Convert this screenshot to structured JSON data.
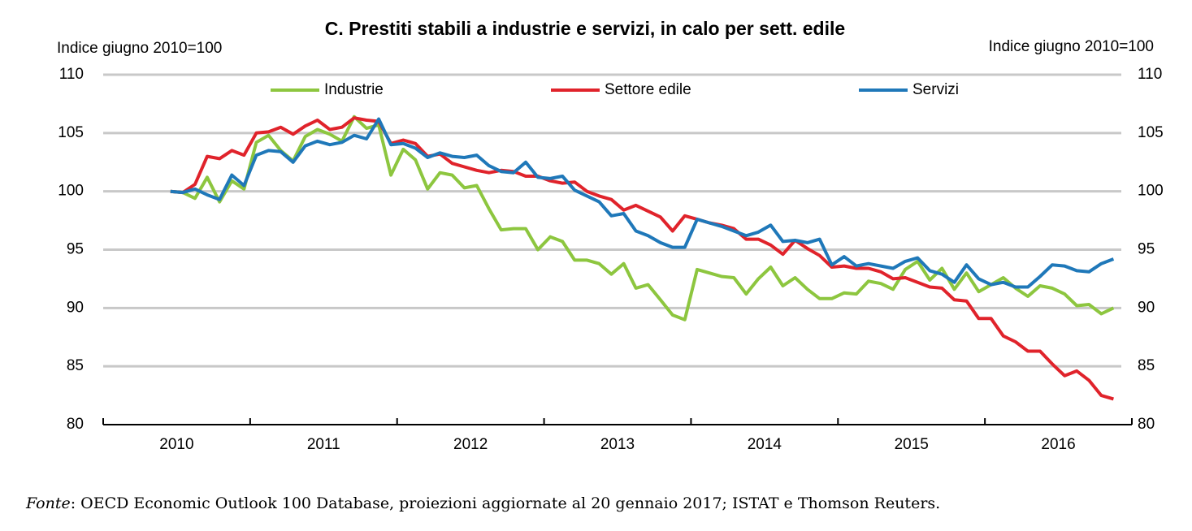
{
  "chart_data": {
    "type": "line",
    "title": "C. Prestiti stabili a industrie e servizi, in calo per sett. edile",
    "ylabel": "Indice giugno 2010=100",
    "y2label": "Indice giugno 2010=100",
    "year_labels": [
      "2010",
      "2011",
      "2012",
      "2013",
      "2014",
      "2015",
      "2016"
    ],
    "xlim": [
      2010,
      2017
    ],
    "xticks": [
      2010,
      2011,
      2012,
      2013,
      2014,
      2015,
      2016,
      2017
    ],
    "ylim": [
      80,
      110
    ],
    "yticks": [
      80,
      85,
      90,
      95,
      100,
      105,
      110
    ],
    "y2lim": [
      80,
      110
    ],
    "y2ticks": [
      80,
      85,
      90,
      95,
      100,
      105,
      110
    ],
    "grid": true,
    "legend": "top",
    "x": [
      2010.458,
      2010.542,
      2010.625,
      2010.708,
      2010.792,
      2010.875,
      2010.958,
      2011.042,
      2011.125,
      2011.208,
      2011.292,
      2011.375,
      2011.458,
      2011.542,
      2011.625,
      2011.708,
      2011.792,
      2011.875,
      2011.958,
      2012.042,
      2012.125,
      2012.208,
      2012.292,
      2012.375,
      2012.458,
      2012.542,
      2012.625,
      2012.708,
      2012.792,
      2012.875,
      2012.958,
      2013.042,
      2013.125,
      2013.208,
      2013.292,
      2013.375,
      2013.458,
      2013.542,
      2013.625,
      2013.708,
      2013.792,
      2013.875,
      2013.958,
      2014.042,
      2014.125,
      2014.208,
      2014.292,
      2014.375,
      2014.458,
      2014.542,
      2014.625,
      2014.708,
      2014.792,
      2014.875,
      2014.958,
      2015.042,
      2015.125,
      2015.208,
      2015.292,
      2015.375,
      2015.458,
      2015.542,
      2015.625,
      2015.708,
      2015.792,
      2015.875,
      2015.958,
      2016.042,
      2016.125,
      2016.208,
      2016.292,
      2016.375,
      2016.458,
      2016.542,
      2016.625,
      2016.708,
      2016.792,
      2016.875
    ],
    "series": [
      {
        "name": "Industrie",
        "color": "#8dc63f",
        "values": [
          100,
          99.9,
          99.4,
          101.2,
          99.1,
          100.9,
          100.2,
          104.2,
          104.8,
          103.5,
          102.6,
          104.7,
          105.3,
          104.9,
          104.3,
          106.4,
          105.4,
          105.7,
          101.4,
          103.6,
          102.7,
          100.2,
          101.6,
          101.4,
          100.3,
          100.5,
          98.5,
          96.7,
          96.8,
          96.8,
          95.0,
          96.1,
          95.7,
          94.1,
          94.1,
          93.8,
          92.9,
          93.8,
          91.7,
          92.0,
          90.7,
          89.4,
          89.0,
          93.3,
          93.0,
          92.7,
          92.6,
          91.2,
          92.5,
          93.5,
          91.9,
          92.6,
          91.6,
          90.8,
          90.8,
          91.3,
          91.2,
          92.3,
          92.1,
          91.6,
          93.3,
          94.0,
          92.4,
          93.4,
          91.6,
          93.0,
          91.4,
          92.0,
          92.6,
          91.7,
          91.0,
          91.9,
          91.7,
          91.2,
          90.2,
          90.3,
          89.5,
          90.0
        ]
      },
      {
        "name": "Settore edile",
        "color": "#e0232b",
        "values": [
          100,
          99.9,
          100.6,
          103.0,
          102.8,
          103.5,
          103.1,
          105.0,
          105.1,
          105.5,
          104.9,
          105.6,
          106.1,
          105.3,
          105.5,
          106.3,
          106.1,
          106.0,
          104.1,
          104.4,
          104.1,
          103.0,
          103.2,
          102.4,
          102.1,
          101.8,
          101.6,
          101.8,
          101.7,
          101.3,
          101.3,
          100.9,
          100.7,
          100.8,
          100.0,
          99.6,
          99.3,
          98.4,
          98.8,
          98.3,
          97.8,
          96.6,
          97.9,
          97.6,
          97.3,
          97.1,
          96.8,
          95.9,
          95.9,
          95.4,
          94.6,
          95.8,
          95.1,
          94.5,
          93.5,
          93.6,
          93.4,
          93.4,
          93.1,
          92.5,
          92.6,
          92.2,
          91.8,
          91.7,
          90.7,
          90.6,
          89.1,
          89.1,
          87.6,
          87.1,
          86.3,
          86.3,
          85.2,
          84.2,
          84.6,
          83.8,
          82.5,
          82.2
        ]
      },
      {
        "name": "Servizi",
        "color": "#1f78b9",
        "values": [
          100,
          99.9,
          100.2,
          99.7,
          99.3,
          101.4,
          100.5,
          103.1,
          103.5,
          103.4,
          102.5,
          103.9,
          104.3,
          104.0,
          104.2,
          104.8,
          104.5,
          106.2,
          104.0,
          104.1,
          103.7,
          102.9,
          103.3,
          103.0,
          102.9,
          103.1,
          102.2,
          101.7,
          101.6,
          102.5,
          101.2,
          101.1,
          101.3,
          100.1,
          99.6,
          99.1,
          97.9,
          98.1,
          96.6,
          96.2,
          95.6,
          95.2,
          95.2,
          97.6,
          97.3,
          97.0,
          96.6,
          96.2,
          96.5,
          97.1,
          95.7,
          95.8,
          95.6,
          95.9,
          93.7,
          94.4,
          93.6,
          93.8,
          93.6,
          93.4,
          94.0,
          94.3,
          93.2,
          92.9,
          92.2,
          93.7,
          92.5,
          92.0,
          92.2,
          91.8,
          91.8,
          92.7,
          93.7,
          93.6,
          93.2,
          93.1,
          93.8,
          94.2
        ]
      }
    ],
    "source_label": "Fonte",
    "source": ": OECD Economic Outlook 100 Database, proiezioni aggiornate al 20 gennaio 2017; ISTAT e Thomson Reuters."
  }
}
